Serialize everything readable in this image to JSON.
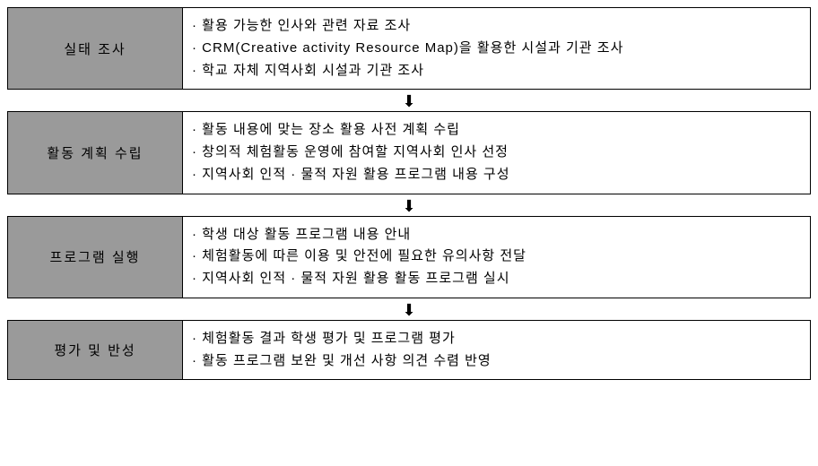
{
  "flowchart": {
    "type": "flowchart",
    "orientation": "vertical",
    "label_bg": "#9a9a9a",
    "label_fg": "#000000",
    "content_bg": "#ffffff",
    "content_fg": "#000000",
    "border_color": "#000000",
    "arrow_glyph": "⬇",
    "steps": [
      {
        "label": "실태 조사",
        "items": [
          "활용 가능한 인사와 관련 자료 조사",
          "CRM(Creative activity Resource Map)을 활용한 시설과 기관 조사",
          "학교 자체 지역사회 시설과 기관 조사"
        ]
      },
      {
        "label": "활동 계획 수립",
        "items": [
          "활동 내용에 맞는 장소 활용 사전 계획 수립",
          "창의적 체험활동 운영에 참여할 지역사회 인사 선정",
          "지역사회 인적 · 물적 자원 활용 프로그램 내용 구성"
        ]
      },
      {
        "label": "프로그램 실행",
        "items": [
          "학생 대상 활동 프로그램 내용 안내",
          "체험활동에 따른 이용 및 안전에 필요한 유의사항 전달",
          "지역사회 인적 · 물적 자원 활용 활동 프로그램 실시"
        ]
      },
      {
        "label": "평가 및 반성",
        "items": [
          "체험활동 결과 학생 평가 및 프로그램 평가",
          "활동 프로그램 보완 및 개선 사항 의견 수렴 반영"
        ]
      }
    ]
  }
}
